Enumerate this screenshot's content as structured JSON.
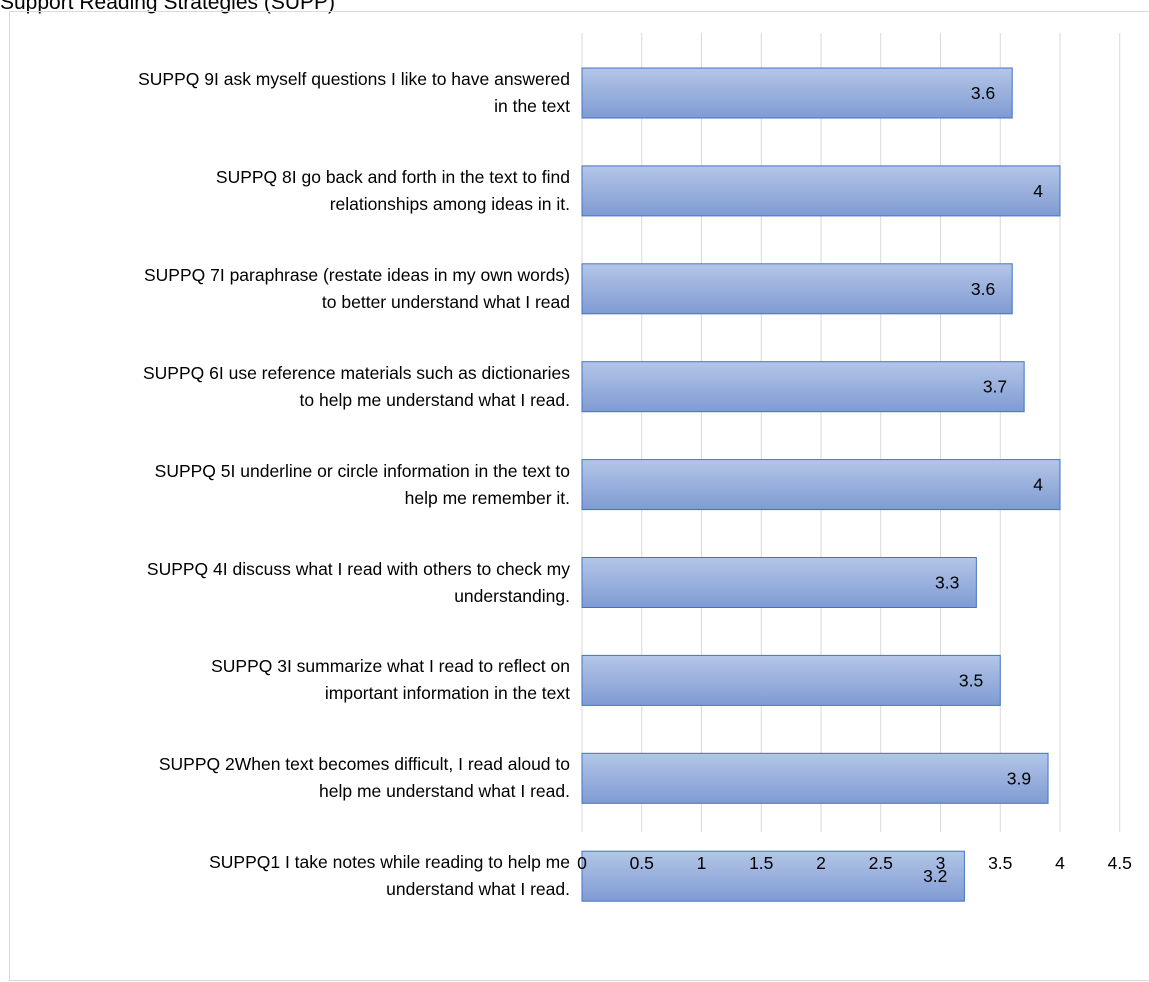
{
  "chart": {
    "title": "Support Reading Strategies (SUPP)"
  },
  "colors": {
    "bar_fill_light": "#b4c6e7",
    "bar_fill_dark": "#7f9bd3",
    "bar_border": "#4472c4",
    "gridline": "#d9d9d9",
    "frame": "#d9d9d9",
    "text": "#000000"
  },
  "chart_data": {
    "type": "bar",
    "orientation": "horizontal",
    "categories": [
      "SUPPQ 9I ask myself questions I like to have answered in the text",
      "SUPPQ 8I go back and forth in the text to find relationships among ideas in it.",
      "SUPPQ 7I paraphrase (restate ideas in my own words) to better understand what I read",
      "SUPPQ 6I use reference materials such as dictionaries to help me understand what I read.",
      "SUPPQ 5I underline or circle information in the text to help me remember it.",
      "SUPPQ 4I discuss what I read with others to check my understanding.",
      "SUPPQ 3I summarize what I read to reflect on important information in the text",
      "SUPPQ 2When text becomes difficult, I read aloud to help me understand what I read.",
      "SUPPQ1 I take notes while reading to help me understand what I read."
    ],
    "category_lines": [
      [
        "SUPPQ 9I ask myself questions I like to have answered",
        "in the text"
      ],
      [
        "SUPPQ 8I go back and forth in the text to find",
        "relationships among ideas in it."
      ],
      [
        "SUPPQ 7I paraphrase (restate ideas in my own words)",
        "to better understand what I read"
      ],
      [
        "SUPPQ 6I use reference materials such as dictionaries",
        "to help me understand what I read."
      ],
      [
        "SUPPQ 5I underline or circle information in the text to",
        "help me remember it."
      ],
      [
        "SUPPQ 4I discuss what I read with others to check my",
        "understanding."
      ],
      [
        "SUPPQ 3I summarize what I read to reflect on",
        "important information in the text"
      ],
      [
        "SUPPQ 2When text becomes difficult, I read aloud to",
        "help me understand what I read."
      ],
      [
        "SUPPQ1 I take notes while reading to help me",
        "understand what I read."
      ]
    ],
    "values": [
      3.6,
      4,
      3.6,
      3.7,
      4,
      3.3,
      3.5,
      3.9,
      3.2
    ],
    "data_labels": [
      "3.6",
      "4",
      "3.6",
      "3.7",
      "4",
      "3.3",
      "3.5",
      "3.9",
      "3.2"
    ],
    "xlim": [
      0,
      4.5
    ],
    "x_ticks": [
      0,
      0.5,
      1,
      1.5,
      2,
      2.5,
      3,
      3.5,
      4,
      4.5
    ],
    "x_tick_labels": [
      "0",
      "0.5",
      "1",
      "1.5",
      "2",
      "2.5",
      "3",
      "3.5",
      "4",
      "4.5"
    ],
    "grid": true,
    "legend": "none"
  }
}
